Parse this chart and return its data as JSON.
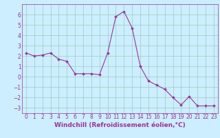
{
  "x": [
    0,
    1,
    2,
    3,
    4,
    5,
    6,
    7,
    8,
    9,
    10,
    11,
    12,
    13,
    14,
    15,
    16,
    17,
    18,
    19,
    20,
    21,
    22,
    23
  ],
  "y": [
    2.3,
    2.0,
    2.1,
    2.3,
    1.7,
    1.5,
    0.3,
    0.3,
    0.3,
    0.2,
    2.3,
    5.8,
    6.3,
    4.7,
    1.0,
    -0.4,
    -0.8,
    -1.2,
    -2.0,
    -2.7,
    -1.9,
    -2.8,
    -2.8,
    -2.8
  ],
  "line_color": "#993399",
  "marker": "D",
  "marker_size": 2.0,
  "bg_color": "#cceeff",
  "grid_color": "#99ccbb",
  "xlabel": "Windchill (Refroidissement éolien,°C)",
  "xlabel_fontsize": 6.5,
  "xlabel_color": "#993399",
  "tick_color": "#993399",
  "tick_fontsize": 5.5,
  "ylim": [
    -3.5,
    7.0
  ],
  "xlim": [
    -0.5,
    23.5
  ],
  "yticks": [
    -3,
    -2,
    -1,
    0,
    1,
    2,
    3,
    4,
    5,
    6
  ],
  "xticks": [
    0,
    1,
    2,
    3,
    4,
    5,
    6,
    7,
    8,
    9,
    10,
    11,
    12,
    13,
    14,
    15,
    16,
    17,
    18,
    19,
    20,
    21,
    22,
    23
  ]
}
